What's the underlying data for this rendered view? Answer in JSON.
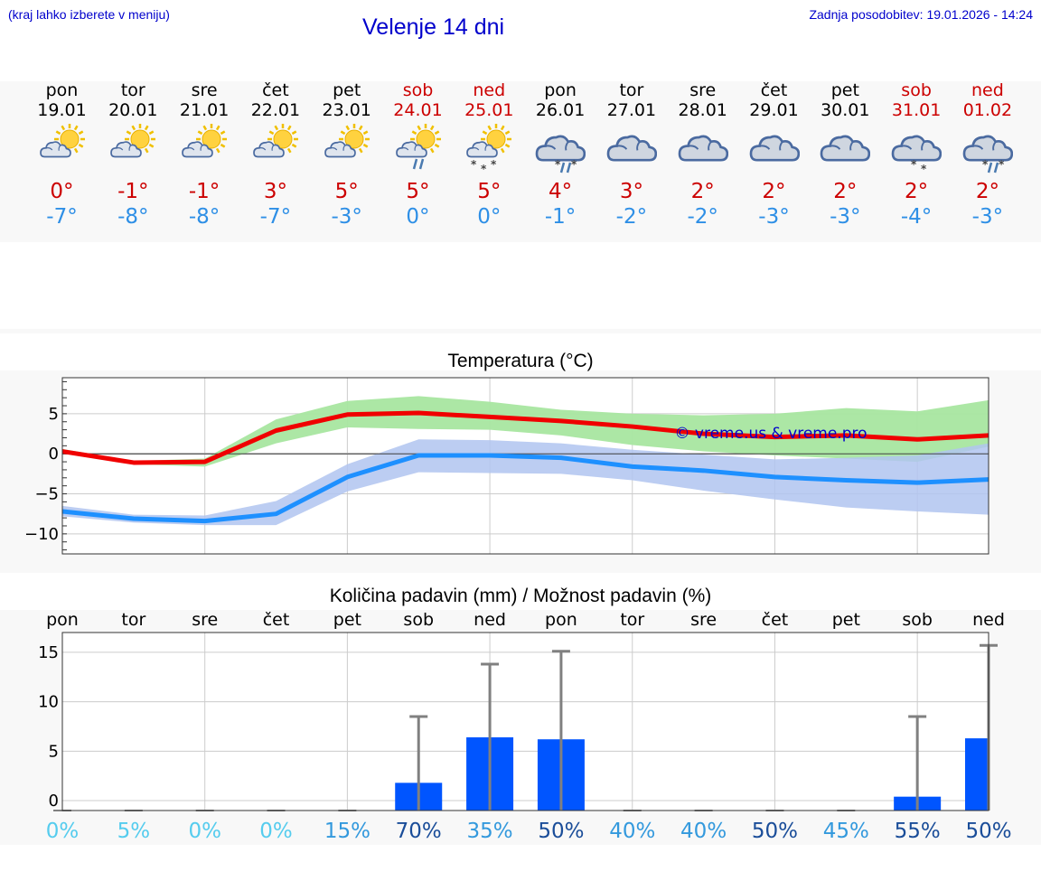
{
  "header": {
    "location_hint": "(kraj lahko izberete v meniju)",
    "title": "Velenje 14 dni",
    "updated": "Zadnja posodobitev: 19.01.2026 - 14:24"
  },
  "colors": {
    "link": "#0000cc",
    "weekend": "#cc0000",
    "tmax": "#cc0000",
    "tmin": "#2e8fe6",
    "max_line": "#f00000",
    "min_line": "#1e90ff",
    "max_band": "#a8e6a0",
    "min_band": "#b0c4f0",
    "bar": "#0055ff",
    "whisker": "#808080"
  },
  "days": [
    {
      "name": "pon",
      "date": "19.01",
      "weekend": false,
      "icon": "partly-sunny-icon",
      "tmax": "0°",
      "tmin": "-7°"
    },
    {
      "name": "tor",
      "date": "20.01",
      "weekend": false,
      "icon": "partly-sunny-icon",
      "tmax": "-1°",
      "tmin": "-8°"
    },
    {
      "name": "sre",
      "date": "21.01",
      "weekend": false,
      "icon": "partly-sunny-icon",
      "tmax": "-1°",
      "tmin": "-8°"
    },
    {
      "name": "čet",
      "date": "22.01",
      "weekend": false,
      "icon": "partly-sunny-icon",
      "tmax": "3°",
      "tmin": "-7°"
    },
    {
      "name": "pet",
      "date": "23.01",
      "weekend": false,
      "icon": "partly-sunny-icon",
      "tmax": "5°",
      "tmin": "-3°"
    },
    {
      "name": "sob",
      "date": "24.01",
      "weekend": true,
      "icon": "sun-cloud-rain-icon",
      "tmax": "5°",
      "tmin": "0°"
    },
    {
      "name": "ned",
      "date": "25.01",
      "weekend": true,
      "icon": "sun-cloud-snow-icon",
      "tmax": "5°",
      "tmin": "0°"
    },
    {
      "name": "pon",
      "date": "26.01",
      "weekend": false,
      "icon": "cloud-sleet-icon",
      "tmax": "4°",
      "tmin": "-1°"
    },
    {
      "name": "tor",
      "date": "27.01",
      "weekend": false,
      "icon": "cloud-icon",
      "tmax": "3°",
      "tmin": "-2°"
    },
    {
      "name": "sre",
      "date": "28.01",
      "weekend": false,
      "icon": "cloud-icon",
      "tmax": "2°",
      "tmin": "-2°"
    },
    {
      "name": "čet",
      "date": "29.01",
      "weekend": false,
      "icon": "cloud-icon",
      "tmax": "2°",
      "tmin": "-3°"
    },
    {
      "name": "pet",
      "date": "30.01",
      "weekend": false,
      "icon": "cloud-icon",
      "tmax": "2°",
      "tmin": "-3°"
    },
    {
      "name": "sob",
      "date": "31.01",
      "weekend": true,
      "icon": "cloud-snow-icon",
      "tmax": "2°",
      "tmin": "-4°"
    },
    {
      "name": "ned",
      "date": "01.02",
      "weekend": true,
      "icon": "cloud-sleet-icon",
      "tmax": "2°",
      "tmin": "-3°"
    }
  ],
  "chart_data": [
    {
      "type": "line",
      "title": "Temperatura (°C)",
      "x": [
        0,
        1,
        2,
        3,
        4,
        5,
        6,
        7,
        8,
        9,
        10,
        11,
        12,
        13
      ],
      "ylim": [
        -12.5,
        9.5
      ],
      "yticks": [
        -10,
        -5,
        0,
        5
      ],
      "ytick_labels": [
        "−10",
        "−5",
        "0",
        "5"
      ],
      "series": [
        {
          "name": "max",
          "values": [
            0.3,
            -1.1,
            -1.0,
            2.9,
            4.9,
            5.1,
            4.6,
            4.1,
            3.4,
            2.5,
            2.1,
            2.3,
            1.8,
            2.3
          ],
          "band_low": [
            0.1,
            -1.3,
            -1.6,
            1.3,
            3.3,
            3.1,
            3.0,
            2.3,
            1.1,
            0.3,
            -0.2,
            -0.6,
            -1.0,
            0.9
          ],
          "band_high": [
            0.6,
            -0.9,
            -0.6,
            4.3,
            6.6,
            7.2,
            6.5,
            5.5,
            5.0,
            4.8,
            5.0,
            5.7,
            5.3,
            6.7
          ]
        },
        {
          "name": "min",
          "values": [
            -7.2,
            -8.1,
            -8.4,
            -7.5,
            -2.9,
            -0.2,
            -0.2,
            -0.5,
            -1.6,
            -2.1,
            -2.9,
            -3.3,
            -3.6,
            -3.2
          ],
          "band_low": [
            -7.8,
            -8.6,
            -8.9,
            -8.9,
            -4.7,
            -2.3,
            -2.4,
            -2.5,
            -3.3,
            -4.6,
            -5.7,
            -6.7,
            -7.2,
            -7.6
          ],
          "band_high": [
            -6.5,
            -7.6,
            -7.7,
            -5.9,
            -1.3,
            1.8,
            1.7,
            1.3,
            0.5,
            -0.1,
            -0.7,
            -0.5,
            -0.2,
            1.3
          ]
        }
      ],
      "watermark": "© vreme.us & vreme.pro"
    },
    {
      "type": "bar",
      "title": "Količina padavin (mm) / Možnost padavin (%)",
      "categories": [
        "pon",
        "tor",
        "sre",
        "čet",
        "pet",
        "sob",
        "ned",
        "pon",
        "tor",
        "sre",
        "čet",
        "pet",
        "sob",
        "ned"
      ],
      "values": [
        0,
        0,
        0,
        0,
        0,
        1.8,
        6.4,
        6.2,
        0,
        0,
        0,
        0,
        0.4,
        6.3
      ],
      "whisker_max": [
        0,
        0,
        0,
        0,
        0,
        8.5,
        13.8,
        15.1,
        0,
        0,
        0,
        0,
        8.5,
        15.7
      ],
      "chance_labels": [
        "0%",
        "5%",
        "0%",
        "0%",
        "15%",
        "70%",
        "35%",
        "50%",
        "40%",
        "40%",
        "50%",
        "45%",
        "55%",
        "50%"
      ],
      "chance_values": [
        0,
        5,
        0,
        0,
        15,
        70,
        35,
        50,
        40,
        40,
        50,
        45,
        55,
        50
      ],
      "ylim": [
        -1,
        17
      ],
      "yticks": [
        0,
        5,
        10,
        15
      ],
      "ytick_labels": [
        "0",
        "5",
        "10",
        "15"
      ]
    }
  ]
}
